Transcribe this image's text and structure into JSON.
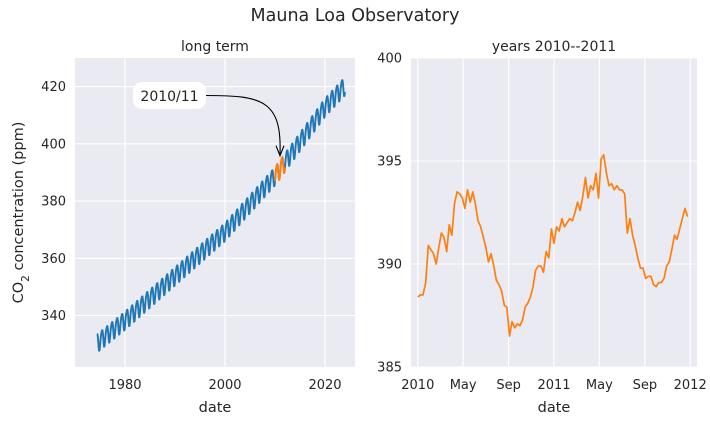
{
  "suptitle": "Mauna Loa Observatory",
  "colors": {
    "panel_bg": "#eaeaf2",
    "grid": "#ffffff",
    "long_term_series": "#1f77b4",
    "highlight_series": "#ff7f0e"
  },
  "chart_data": [
    {
      "type": "line",
      "title": "long term",
      "xlabel": "date",
      "ylabel": "CO",
      "ylabel_sub": "2",
      "ylabel_rest": " concentration (ppm)",
      "xlim": [
        1970,
        2026
      ],
      "ylim": [
        322,
        430
      ],
      "xticks": [
        1980,
        2000,
        2020
      ],
      "xtick_labels": [
        "1980",
        "2000",
        "2020"
      ],
      "yticks": [
        340,
        360,
        380,
        400,
        420
      ],
      "ytick_labels": [
        "340",
        "360",
        "380",
        "400",
        "420"
      ],
      "grid": true,
      "series": [
        {
          "color": "#1f77b4",
          "model": "monthly mean with seasonal cycle",
          "x_start": 1974.4,
          "x_end": 2024.0,
          "trend_points": [
            [
              1974,
              330
            ],
            [
              1980,
              338.5
            ],
            [
              1990,
              354
            ],
            [
              2000,
              369.5
            ],
            [
              2010,
              389
            ],
            [
              2020,
              413
            ],
            [
              2024,
              420.5
            ]
          ],
          "seasonal_amplitude": 3.2
        },
        {
          "color": "#ff7f0e",
          "model": "highlighted interval 2010-2011",
          "x_start": 2010.0,
          "x_end": 2012.0
        }
      ],
      "annotation": {
        "text": "2010/11",
        "xy": [
          2011.0,
          395.5
        ],
        "text_position": "upper-left",
        "arrow": "curved"
      }
    },
    {
      "type": "line",
      "title": "years 2010--2011",
      "xlabel": "date",
      "xlim": [
        2009.95,
        2012.05
      ],
      "ylim": [
        385,
        400
      ],
      "xticks": [
        2010.0,
        2010.333,
        2010.667,
        2011.0,
        2011.333,
        2011.667,
        2012.0
      ],
      "xtick_labels": [
        "2010",
        "May",
        "Sep",
        "2011",
        "May",
        "Sep",
        "2012"
      ],
      "yticks": [
        385,
        390,
        395,
        400
      ],
      "ytick_labels": [
        "385",
        "390",
        "395",
        "400"
      ],
      "grid": true,
      "series": [
        {
          "color": "#ff7f0e",
          "x": [
            2010.0,
            2010.019,
            2010.038,
            2010.058,
            2010.077,
            2010.096,
            2010.115,
            2010.135,
            2010.154,
            2010.173,
            2010.192,
            2010.212,
            2010.231,
            2010.25,
            2010.269,
            2010.288,
            2010.308,
            2010.327,
            2010.346,
            2010.365,
            2010.385,
            2010.404,
            2010.423,
            2010.442,
            2010.462,
            2010.481,
            2010.5,
            2010.519,
            2010.538,
            2010.558,
            2010.577,
            2010.596,
            2010.615,
            2010.635,
            2010.654,
            2010.673,
            2010.692,
            2010.712,
            2010.731,
            2010.75,
            2010.769,
            2010.788,
            2010.808,
            2010.827,
            2010.846,
            2010.865,
            2010.885,
            2010.904,
            2010.923,
            2010.942,
            2010.962,
            2010.981,
            2011.0,
            2011.019,
            2011.038,
            2011.058,
            2011.077,
            2011.096,
            2011.115,
            2011.135,
            2011.154,
            2011.173,
            2011.192,
            2011.212,
            2011.231,
            2011.25,
            2011.269,
            2011.288,
            2011.308,
            2011.327,
            2011.346,
            2011.365,
            2011.385,
            2011.404,
            2011.423,
            2011.442,
            2011.462,
            2011.481,
            2011.5,
            2011.519,
            2011.538,
            2011.558,
            2011.577,
            2011.596,
            2011.615,
            2011.635,
            2011.654,
            2011.673,
            2011.692,
            2011.712,
            2011.731,
            2011.75,
            2011.769,
            2011.788,
            2011.808,
            2011.827,
            2011.846,
            2011.865,
            2011.885,
            2011.904,
            2011.923,
            2011.942,
            2011.962,
            2011.981
          ],
          "y": [
            388.4,
            388.5,
            388.5,
            389.1,
            390.9,
            390.7,
            390.5,
            390.0,
            390.8,
            391.5,
            391.3,
            390.6,
            391.9,
            391.4,
            392.9,
            393.5,
            393.4,
            393.2,
            392.7,
            393.6,
            393.0,
            393.5,
            392.9,
            392.1,
            391.8,
            391.3,
            390.8,
            390.1,
            390.5,
            389.9,
            389.2,
            389.0,
            388.7,
            388.0,
            387.9,
            386.5,
            387.2,
            386.9,
            387.1,
            387.0,
            387.3,
            387.9,
            388.1,
            388.4,
            388.9,
            389.7,
            389.9,
            389.9,
            389.6,
            390.6,
            390.3,
            391.7,
            391.0,
            391.8,
            391.6,
            392.2,
            391.8,
            392.0,
            392.2,
            392.1,
            392.5,
            393.0,
            392.6,
            393.3,
            394.2,
            393.2,
            393.8,
            393.6,
            394.4,
            393.2,
            395.1,
            395.3,
            394.4,
            393.8,
            393.9,
            393.6,
            393.8,
            393.6,
            393.6,
            393.4,
            391.5,
            392.2,
            391.4,
            390.9,
            390.3,
            389.8,
            389.8,
            389.3,
            389.4,
            389.4,
            389.0,
            388.9,
            389.1,
            389.1,
            389.3,
            389.9,
            390.1,
            390.7,
            391.4,
            391.2,
            391.7,
            392.2,
            392.7,
            392.3
          ]
        }
      ]
    }
  ]
}
